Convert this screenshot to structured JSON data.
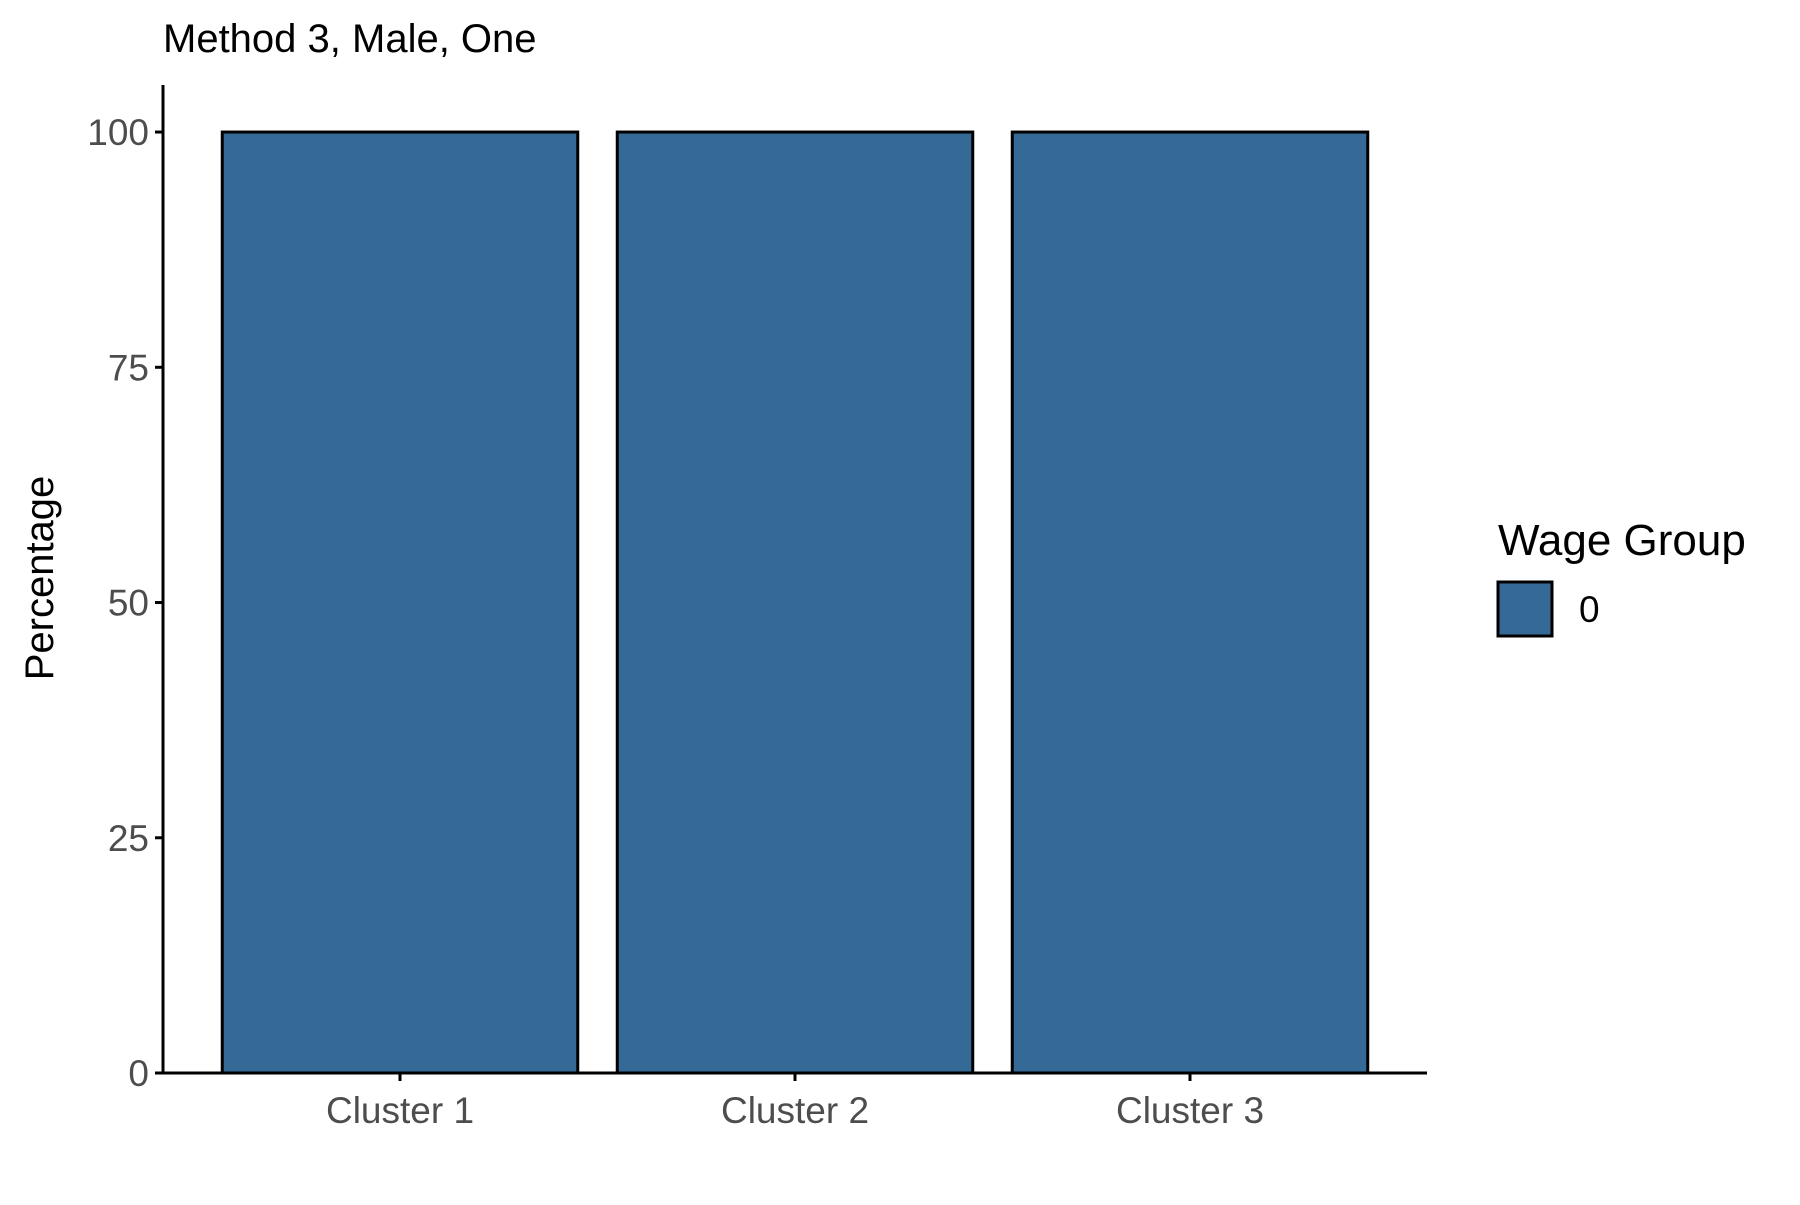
{
  "chart_data": {
    "type": "bar",
    "title": "Method 3, Male, One",
    "xlabel": "",
    "ylabel": "Percentage",
    "categories": [
      "Cluster 1",
      "Cluster 2",
      "Cluster 3"
    ],
    "series": [
      {
        "name": "0",
        "values": [
          100,
          100,
          100
        ],
        "color": "#356a97"
      }
    ],
    "ylim": [
      0,
      105
    ],
    "yticks": [
      0,
      25,
      50,
      75,
      100
    ],
    "grid": false,
    "legend": {
      "title": "Wage Group",
      "placement": "right",
      "entries": [
        "0"
      ]
    },
    "bar_outline_color": "#000000"
  }
}
